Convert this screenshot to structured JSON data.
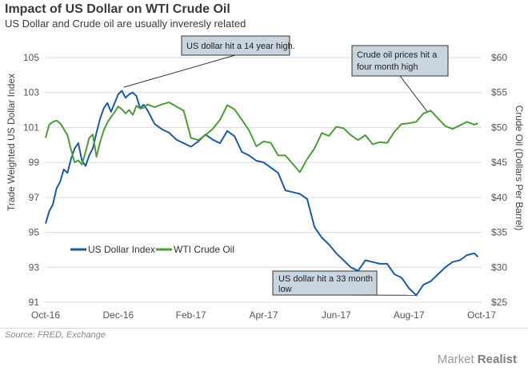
{
  "header": {
    "title": "Impact of US Dollar on WTI Crude Oil",
    "subtitle": "US Dollar and Crude oil are usually inveresly related",
    "source": "Source: FRED, Exchange",
    "brand_part1": "Market",
    "brand_part2": "Realist"
  },
  "chart_data": {
    "type": "line",
    "title": "Impact of US Dollar on WTI Crude Oil",
    "xlabel": "",
    "ylabel": "Trade Weighted US Dollar Index",
    "y2label": "Crude Oil (Dollars  Per Barrel)",
    "x_ticks": [
      "Oct-16",
      "Dec-16",
      "Feb-17",
      "Apr-17",
      "Jun-17",
      "Aug-17",
      "Oct-17"
    ],
    "y_ticks": [
      "105",
      "103",
      "101",
      "99",
      "97",
      "95",
      "93",
      "91"
    ],
    "y2_ticks": [
      "$60",
      "$55",
      "$50",
      "$45",
      "$40",
      "$35",
      "$30",
      "$25"
    ],
    "ylim": [
      91,
      105
    ],
    "y2lim": [
      25,
      60
    ],
    "x_range_months": [
      0,
      12
    ],
    "legend": [
      "US Dollar Index",
      "WTI Crude Oil"
    ],
    "colors": {
      "usd": "#1f5aa0",
      "oil": "#4f9a3a"
    },
    "series": [
      {
        "name": "US Dollar Index",
        "x": [
          0,
          0.1,
          0.2,
          0.3,
          0.4,
          0.5,
          0.6,
          0.7,
          0.8,
          0.9,
          1.0,
          1.1,
          1.2,
          1.3,
          1.4,
          1.5,
          1.6,
          1.7,
          1.8,
          1.9,
          2.0,
          2.1,
          2.2,
          2.3,
          2.4,
          2.5,
          2.6,
          2.7,
          2.8,
          3.0,
          3.2,
          3.4,
          3.6,
          3.8,
          4.0,
          4.2,
          4.4,
          4.6,
          4.8,
          5.0,
          5.2,
          5.4,
          5.6,
          5.8,
          6.0,
          6.2,
          6.4,
          6.6,
          6.8,
          7.0,
          7.2,
          7.4,
          7.6,
          7.8,
          8.0,
          8.2,
          8.4,
          8.6,
          8.8,
          9.0,
          9.2,
          9.4,
          9.6,
          9.8,
          10.0,
          10.2,
          10.4,
          10.6,
          10.8,
          11.0,
          11.2,
          11.4,
          11.6,
          11.8,
          11.9
        ],
        "values": [
          95.5,
          96.2,
          96.6,
          97.5,
          97.9,
          98.6,
          98.4,
          99.2,
          99.8,
          100.1,
          99.1,
          98.8,
          99.4,
          99.8,
          100.7,
          101.5,
          102.1,
          102.4,
          101.9,
          102.4,
          102.9,
          103.1,
          102.7,
          102.9,
          103.0,
          102.8,
          102.1,
          102.3,
          102.0,
          101.2,
          100.9,
          100.7,
          100.3,
          100.1,
          99.9,
          100.2,
          100.6,
          100.3,
          100.1,
          100.8,
          100.5,
          99.6,
          99.4,
          99.1,
          99.0,
          98.7,
          98.4,
          97.4,
          97.3,
          97.2,
          96.9,
          95.3,
          94.7,
          94.3,
          93.8,
          93.4,
          93.0,
          92.8,
          93.4,
          93.3,
          93.2,
          93.2,
          92.6,
          92.4,
          91.8,
          91.4,
          92.0,
          92.2,
          92.6,
          93.0,
          93.3,
          93.4,
          93.7,
          93.8,
          93.6
        ]
      },
      {
        "name": "WTI Crude Oil",
        "x": [
          0,
          0.1,
          0.2,
          0.3,
          0.4,
          0.5,
          0.6,
          0.7,
          0.8,
          0.9,
          1.0,
          1.1,
          1.2,
          1.3,
          1.4,
          1.5,
          1.6,
          1.7,
          1.8,
          1.9,
          2.0,
          2.1,
          2.2,
          2.3,
          2.4,
          2.5,
          2.6,
          2.7,
          2.8,
          3.0,
          3.2,
          3.4,
          3.6,
          3.8,
          4.0,
          4.2,
          4.4,
          4.6,
          4.8,
          5.0,
          5.2,
          5.4,
          5.6,
          5.8,
          6.0,
          6.2,
          6.4,
          6.6,
          6.8,
          7.0,
          7.2,
          7.4,
          7.6,
          7.8,
          8.0,
          8.2,
          8.4,
          8.6,
          8.8,
          9.0,
          9.2,
          9.4,
          9.6,
          9.8,
          10.0,
          10.2,
          10.4,
          10.6,
          10.8,
          11.0,
          11.2,
          11.4,
          11.6,
          11.8,
          11.9
        ],
        "values": [
          48.5,
          50.4,
          50.8,
          51.0,
          50.6,
          49.8,
          48.9,
          46.8,
          45.0,
          45.3,
          44.7,
          46.5,
          48.5,
          49.0,
          45.8,
          47.9,
          49.6,
          50.7,
          51.5,
          52.2,
          53.0,
          52.6,
          52.0,
          52.5,
          51.8,
          53.1,
          52.7,
          52.8,
          53.3,
          52.9,
          53.3,
          53.6,
          53.0,
          52.4,
          48.5,
          48.2,
          48.9,
          49.8,
          51.1,
          53.2,
          52.6,
          51.1,
          49.6,
          47.3,
          48.0,
          47.8,
          46.0,
          46.0,
          44.8,
          43.6,
          45.5,
          47.0,
          49.2,
          48.8,
          50.1,
          49.9,
          48.9,
          48.2,
          48.9,
          47.6,
          47.9,
          47.8,
          49.4,
          50.5,
          50.6,
          50.8,
          52.0,
          52.4,
          51.3,
          50.2,
          49.8,
          50.3,
          50.8,
          50.4,
          50.6
        ]
      }
    ],
    "annotations": [
      {
        "text": [
          "US dollar hit a 14 year high."
        ],
        "series": "usd",
        "x": 2.15,
        "y": 103.3
      },
      {
        "text": [
          "Crude oil prices hit a",
          "four month high"
        ],
        "series": "oil",
        "x": 10.5,
        "y": 52.3
      },
      {
        "text": [
          "US dollar hit a 33 month",
          "low"
        ],
        "series": "usd",
        "x": 10.2,
        "y": 91.4
      }
    ]
  }
}
